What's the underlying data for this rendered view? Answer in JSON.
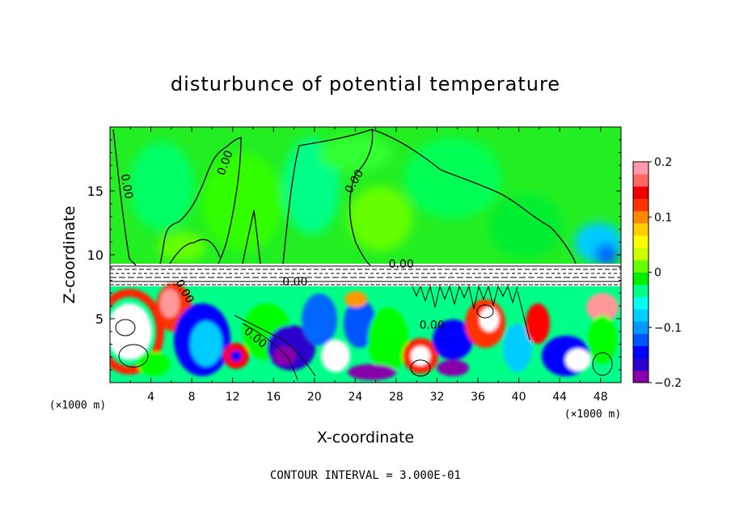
{
  "chart_data": {
    "type": "heatmap",
    "title": "disturbunce of potential temperature",
    "xlabel": "X-coordinate",
    "ylabel": "Z-coordinate",
    "x_unit_left": "(×1000 m)",
    "x_unit_right": "(×1000 m)",
    "footer": "CONTOUR INTERVAL = 3.000E-01",
    "xlim": [
      0,
      50
    ],
    "ylim": [
      0,
      20
    ],
    "x_ticks": [
      4,
      8,
      12,
      16,
      20,
      24,
      28,
      32,
      36,
      40,
      44,
      48
    ],
    "x_tick_labels": [
      "4",
      "8",
      "12",
      "16",
      "20",
      "24",
      "28",
      "32",
      "36",
      "40",
      "44",
      "48"
    ],
    "y_ticks": [
      5,
      10,
      15
    ],
    "y_tick_labels": [
      "5",
      "10",
      "15"
    ],
    "colorbar": {
      "min": -0.2,
      "max": 0.2,
      "ticks": [
        0.2,
        0.1,
        0,
        -0.1,
        -0.2
      ],
      "tick_labels": [
        "0.2",
        "0.1",
        "0",
        "−0.1",
        "−0.2"
      ],
      "colors": [
        "#8800aa",
        "#2a00cc",
        "#0000ff",
        "#0055ff",
        "#0099ff",
        "#00ccff",
        "#00ffee",
        "#00ff88",
        "#00ee00",
        "#66ff00",
        "#ccff00",
        "#ffff00",
        "#ffcc00",
        "#ff8800",
        "#ff3300",
        "#ee0000",
        "#ff6666",
        "#ff99aa"
      ]
    },
    "contour_labels": [
      {
        "text": "0.00",
        "x": 1.3,
        "z": 15.3,
        "rotate": 80
      },
      {
        "text": "0.00",
        "x": 11.6,
        "z": 17.1,
        "rotate": -70
      },
      {
        "text": "0.00",
        "x": 24.2,
        "z": 15.6,
        "rotate": -60
      },
      {
        "text": "0.00",
        "x": 28.5,
        "z": 9.0,
        "rotate": 0
      },
      {
        "text": "0.00",
        "x": 18.1,
        "z": 7.6,
        "rotate": 0
      },
      {
        "text": "0.00",
        "x": 7.0,
        "z": 7.0,
        "rotate": 60
      },
      {
        "text": "0.00",
        "x": 14.0,
        "z": 3.3,
        "rotate": 40
      },
      {
        "text": "0.00",
        "x": 31.5,
        "z": 4.2,
        "rotate": 0
      }
    ]
  }
}
